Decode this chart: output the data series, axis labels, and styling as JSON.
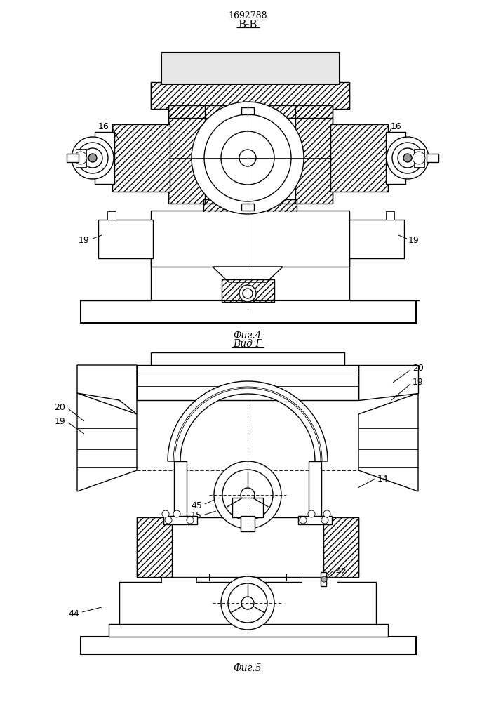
{
  "title": "1692788",
  "fig4_label": "В-В",
  "fig4_caption": "Фиг.4",
  "fig5_caption": "Вид Г",
  "fig5_bottom": "Фиг.5",
  "bg_color": "#ffffff",
  "line_color": "#000000"
}
